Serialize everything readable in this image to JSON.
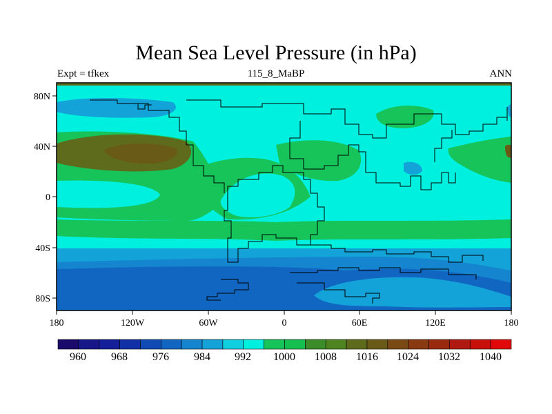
{
  "title": "Mean Sea Level Pressure (in hPa)",
  "left_label": "Expt = tfkex",
  "center_label": "115_8_MaBP",
  "right_label": "ANN",
  "lon_ticks": [
    "180",
    "120W",
    "60W",
    "0",
    "60E",
    "120E",
    "180"
  ],
  "lat_ticks": [
    "80N",
    "40N",
    "0",
    "40S",
    "80S"
  ],
  "colorbar": {
    "labels": [
      "960",
      "968",
      "976",
      "984",
      "992",
      "1000",
      "1008",
      "1016",
      "1024",
      "1032",
      "1040"
    ],
    "colors": [
      "#1a0a6b",
      "#17178a",
      "#141f99",
      "#1230a6",
      "#0f4ab5",
      "#1166c2",
      "#1585cf",
      "#14a3d9",
      "#12cfe0",
      "#00f0e0",
      "#17c45a",
      "#16c050",
      "#3c8c2a",
      "#4e8520",
      "#5e6a1c",
      "#6a5a18",
      "#7a4a14",
      "#8a3a10",
      "#9a2a0e",
      "#b01812",
      "#c8100a",
      "#e0080a"
    ]
  },
  "chart_data": {
    "type": "heatmap",
    "title": "Mean Sea Level Pressure (in hPa)",
    "variable": "Mean Sea Level Pressure",
    "units": "hPa",
    "xlim": [
      -180,
      180
    ],
    "ylim": [
      -90,
      90
    ],
    "contour_levels": [
      960,
      964,
      968,
      972,
      976,
      980,
      984,
      988,
      992,
      996,
      1000,
      1004,
      1008,
      1012,
      1016,
      1020,
      1024,
      1028,
      1032,
      1036,
      1040
    ],
    "x_ticks": [
      "180",
      "120W",
      "60W",
      "0",
      "60E",
      "120E",
      "180"
    ],
    "y_ticks": [
      "80N",
      "40N",
      "0",
      "40S",
      "80S"
    ]
  }
}
